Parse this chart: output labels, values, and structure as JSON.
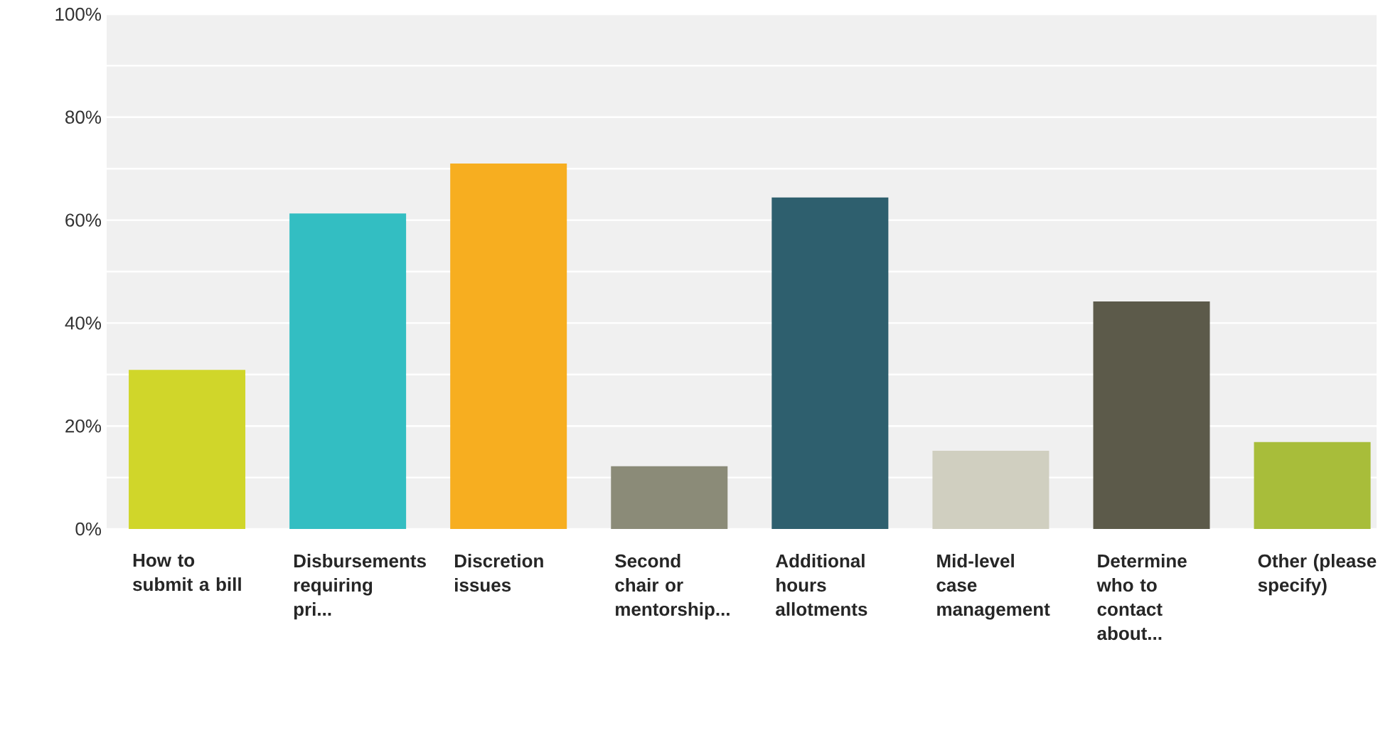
{
  "chart_data": {
    "type": "bar",
    "categories": [
      "How to submit a bill",
      "Disbursements requiring pri...",
      "Discretion issues",
      "Second chair or mentorship...",
      "Additional hours allotments",
      "Mid-level case management",
      "Determine who to contact about...",
      "Other (please specify)"
    ],
    "values": [
      30.9,
      61.3,
      71.0,
      12.2,
      64.4,
      15.2,
      44.2,
      16.9
    ],
    "colors": [
      "#d0d62a",
      "#33bec2",
      "#f7ae20",
      "#8b8b78",
      "#2e5f6e",
      "#d0cfc0",
      "#5c5a4a",
      "#a8bd3a"
    ],
    "ylim": [
      0,
      100
    ],
    "yticks": [
      {
        "value": 0,
        "label": "0%"
      },
      {
        "value": 10,
        "label": null
      },
      {
        "value": 20,
        "label": "20%"
      },
      {
        "value": 30,
        "label": null
      },
      {
        "value": 40,
        "label": "40%"
      },
      {
        "value": 50,
        "label": null
      },
      {
        "value": 60,
        "label": "60%"
      },
      {
        "value": 70,
        "label": null
      },
      {
        "value": 80,
        "label": "80%"
      },
      {
        "value": 90,
        "label": null
      },
      {
        "value": 100,
        "label": "100%"
      }
    ],
    "grid": true
  }
}
